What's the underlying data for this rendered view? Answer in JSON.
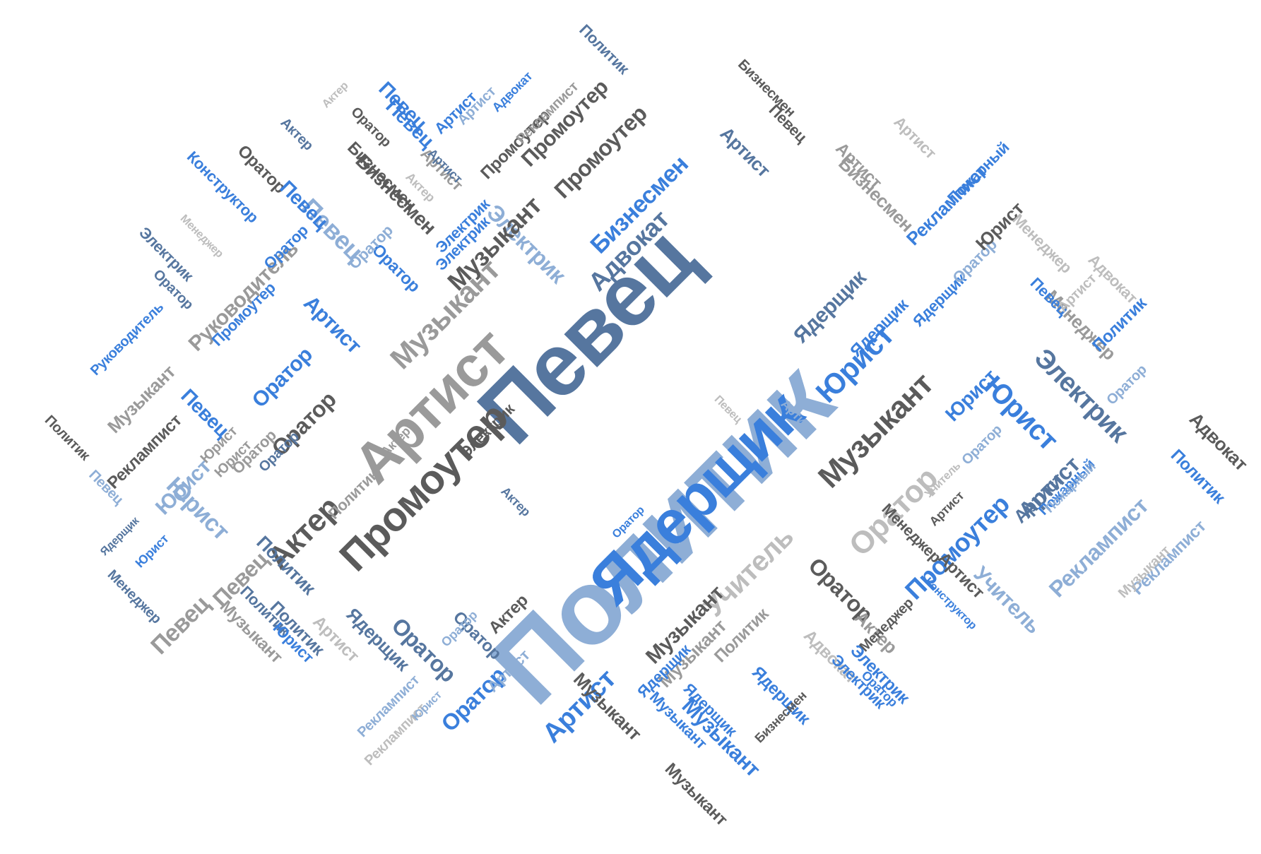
{
  "colors": {
    "steel": "#56769f",
    "light_blue": "#8eaed6",
    "bright_blue": "#3a7fdc",
    "dark_gray": "#5b5b5b",
    "mid_gray": "#9a9a9a",
    "light_gray": "#bdbdbd"
  },
  "words": [
    {
      "text": "Политик",
      "color": "#8eaed6",
      "emphasis": "largest"
    },
    {
      "text": "Певец",
      "color": "#56769f",
      "emphasis": "large"
    },
    {
      "text": "Ядерщик",
      "color": "#3a7fdc",
      "emphasis": "large"
    },
    {
      "text": "Артист",
      "color": "#9a9a9a",
      "emphasis": "large"
    },
    {
      "text": "Промоутер",
      "color": "#5b5b5b",
      "emphasis": "large"
    },
    {
      "text": "Актер",
      "color": "#5b5b5b"
    },
    {
      "text": "Музыкант",
      "color": "#9a9a9a"
    },
    {
      "text": "Адвокат",
      "color": "#56769f"
    },
    {
      "text": "Бизнесмен",
      "color": "#3a7fdc"
    },
    {
      "text": "Промоутер",
      "color": "#5b5b5b"
    },
    {
      "text": "Электрик",
      "color": "#8eaed6"
    },
    {
      "text": "Юрист",
      "color": "#3a7fdc"
    },
    {
      "text": "Ядерщик",
      "color": "#56769f"
    },
    {
      "text": "Музыкант",
      "color": "#5b5b5b"
    },
    {
      "text": "Музыкант",
      "color": "#9a9a9a"
    },
    {
      "text": "Оратор",
      "color": "#bdbdbd"
    },
    {
      "text": "Учитель",
      "color": "#bdbdbd"
    },
    {
      "text": "Промоутер",
      "color": "#3a7fdc"
    },
    {
      "text": "Оратор",
      "color": "#56769f"
    },
    {
      "text": "Оратор",
      "color": "#5b5b5b"
    },
    {
      "text": "Оратор",
      "color": "#3a7fdc"
    },
    {
      "text": "Электрик",
      "color": "#56769f"
    },
    {
      "text": "Юрист",
      "color": "#3a7fdc"
    },
    {
      "text": "Артист",
      "color": "#56769f"
    },
    {
      "text": "Реклампист",
      "color": "#8eaed6"
    },
    {
      "text": "Руководитель",
      "color": "#9a9a9a"
    },
    {
      "text": "Певец",
      "color": "#9a9a9a"
    },
    {
      "text": "Юрист",
      "color": "#8eaed6"
    },
    {
      "text": "Политик",
      "color": "#56769f"
    },
    {
      "text": "Певец",
      "color": "#8eaed6"
    },
    {
      "text": "Бизнесмен",
      "color": "#5b5b5b"
    },
    {
      "text": "Певец",
      "color": "#3a7fdc"
    },
    {
      "text": "Артист",
      "color": "#3a7fdc"
    },
    {
      "text": "Артист",
      "color": "#3a7fdc"
    },
    {
      "text": "Оратор",
      "color": "#3a7fdc"
    },
    {
      "text": "Артист",
      "color": "#9a9a9a"
    },
    {
      "text": "Промоутер",
      "color": "#5b5b5b"
    },
    {
      "text": "Оратор",
      "color": "#3a7fdc"
    },
    {
      "text": "Электрик",
      "color": "#3a7fdc"
    },
    {
      "text": "Артист",
      "color": "#3a7fdc"
    },
    {
      "text": "Ядерщик",
      "color": "#3a7fdc"
    },
    {
      "text": "Музыкант",
      "color": "#5b5b5b"
    },
    {
      "text": "Политик",
      "color": "#9a9a9a"
    },
    {
      "text": "Адвокат",
      "color": "#bdbdbd"
    },
    {
      "text": "Музыкант",
      "color": "#3a7fdc"
    },
    {
      "text": "Ядерщик",
      "color": "#3a7fdc"
    },
    {
      "text": "Музыкант",
      "color": "#5b5b5b"
    },
    {
      "text": "Оратор",
      "color": "#5b5b5b"
    },
    {
      "text": "Менеджер",
      "color": "#5b5b5b"
    },
    {
      "text": "Артист",
      "color": "#5b5b5b"
    },
    {
      "text": "Учитель",
      "color": "#8eaed6"
    },
    {
      "text": "Реклампист",
      "color": "#8eaed6"
    },
    {
      "text": "Адвокат",
      "color": "#5b5b5b"
    },
    {
      "text": "Политик",
      "color": "#3a7fdc"
    },
    {
      "text": "Менеджер",
      "color": "#9a9a9a"
    },
    {
      "text": "Адвокат",
      "color": "#bdbdbd"
    },
    {
      "text": "Электрик",
      "color": "#3a7fdc"
    },
    {
      "text": "Артист",
      "color": "#5b5b5b"
    },
    {
      "text": "Юрист",
      "color": "#3a7fdc"
    },
    {
      "text": "Ядерщик",
      "color": "#3a7fdc"
    },
    {
      "text": "Ядерщик",
      "color": "#3a7fdc"
    },
    {
      "text": "Оратор",
      "color": "#8eaed6"
    },
    {
      "text": "Юрист",
      "color": "#5b5b5b"
    },
    {
      "text": "Менеджер",
      "color": "#bdbdbd"
    },
    {
      "text": "Политик",
      "color": "#3a7fdc"
    },
    {
      "text": "Певец",
      "color": "#3a7fdc"
    },
    {
      "text": "Артист",
      "color": "#bdbdbd"
    },
    {
      "text": "Реклампист",
      "color": "#3a7fdc"
    },
    {
      "text": "Пожарный",
      "color": "#3a7fdc"
    },
    {
      "text": "Пожарный",
      "color": "#3a7fdc"
    },
    {
      "text": "Артист",
      "color": "#9a9a9a"
    },
    {
      "text": "Бизнесмен",
      "color": "#9a9a9a"
    },
    {
      "text": "Артист",
      "color": "#bdbdbd"
    },
    {
      "text": "Певец",
      "color": "#5b5b5b"
    },
    {
      "text": "Бизнесмен",
      "color": "#5b5b5b"
    },
    {
      "text": "Артист",
      "color": "#56769f"
    },
    {
      "text": "Промоутер",
      "color": "#5b5b5b"
    },
    {
      "text": "Реклампист",
      "color": "#9a9a9a"
    },
    {
      "text": "Адвокат",
      "color": "#3a7fdc"
    },
    {
      "text": "Артист",
      "color": "#8eaed6"
    },
    {
      "text": "Певец",
      "color": "#3a7fdc"
    },
    {
      "text": "Политик",
      "color": "#56769f"
    },
    {
      "text": "Актер",
      "color": "#bdbdbd"
    },
    {
      "text": "Оратор",
      "color": "#5b5b5b"
    },
    {
      "text": "Актер",
      "color": "#56769f"
    },
    {
      "text": "Оратор",
      "color": "#5b5b5b"
    },
    {
      "text": "Конструктор",
      "color": "#3a7fdc"
    },
    {
      "text": "Бизнесмен",
      "color": "#5b5b5b"
    },
    {
      "text": "Актер",
      "color": "#bdbdbd"
    },
    {
      "text": "Артист",
      "color": "#56769f"
    },
    {
      "text": "Электрик",
      "color": "#3a7fdc"
    },
    {
      "text": "Певец",
      "color": "#3a7fdc"
    },
    {
      "text": "Оратор",
      "color": "#8eaed6"
    },
    {
      "text": "Музыкант",
      "color": "#5b5b5b"
    },
    {
      "text": "Менеджер",
      "color": "#bdbdbd"
    },
    {
      "text": "Электрик",
      "color": "#56769f"
    },
    {
      "text": "Оратор",
      "color": "#56769f"
    },
    {
      "text": "Руководитель",
      "color": "#3a7fdc"
    },
    {
      "text": "Промоутер",
      "color": "#3a7fdc"
    },
    {
      "text": "Музыкант",
      "color": "#9a9a9a"
    },
    {
      "text": "Реклампист",
      "color": "#5b5b5b"
    },
    {
      "text": "Политик",
      "color": "#5b5b5b"
    },
    {
      "text": "Певец",
      "color": "#3a7fdc"
    },
    {
      "text": "Оратор",
      "color": "#9a9a9a"
    },
    {
      "text": "Юрист",
      "color": "#8eaed6"
    },
    {
      "text": "Юрист",
      "color": "#9a9a9a"
    },
    {
      "text": "Оратор",
      "color": "#56769f"
    },
    {
      "text": "Певец",
      "color": "#8eaed6"
    },
    {
      "text": "Ядерщик",
      "color": "#56769f"
    },
    {
      "text": "Юрист",
      "color": "#3a7fdc"
    },
    {
      "text": "Менеджер",
      "color": "#56769f"
    },
    {
      "text": "Певец",
      "color": "#9a9a9a"
    },
    {
      "text": "Политик",
      "color": "#56769f"
    },
    {
      "text": "Политик",
      "color": "#56769f"
    },
    {
      "text": "Музыкант",
      "color": "#9a9a9a"
    },
    {
      "text": "Юрист",
      "color": "#3a7fdc"
    },
    {
      "text": "Артист",
      "color": "#bdbdbd"
    },
    {
      "text": "Ядерщик",
      "color": "#56769f"
    },
    {
      "text": "Оратор",
      "color": "#56769f"
    },
    {
      "text": "Реклампист",
      "color": "#8eaed6"
    },
    {
      "text": "Реклампист",
      "color": "#bdbdbd"
    },
    {
      "text": "Юрист",
      "color": "#8eaed6"
    },
    {
      "text": "Оратор",
      "color": "#8eaed6"
    },
    {
      "text": "Оратор",
      "color": "#3a7fdc"
    },
    {
      "text": "Артист",
      "color": "#8eaed6"
    },
    {
      "text": "Актер",
      "color": "#5b5b5b"
    },
    {
      "text": "Музыкант",
      "color": "#5b5b5b"
    },
    {
      "text": "Музыкант",
      "color": "#3a7fdc"
    },
    {
      "text": "Ядерщик",
      "color": "#3a7fdc"
    },
    {
      "text": "Бизнесмен",
      "color": "#5b5b5b"
    },
    {
      "text": "Оратор",
      "color": "#3a7fdc"
    },
    {
      "text": "Актер",
      "color": "#9a9a9a"
    },
    {
      "text": "Менеджер",
      "color": "#5b5b5b"
    },
    {
      "text": "Конструктор",
      "color": "#3a7fdc"
    },
    {
      "text": "Электрик",
      "color": "#3a7fdc"
    },
    {
      "text": "Артист",
      "color": "#56769f"
    },
    {
      "text": "Пожарный",
      "color": "#8eaed6"
    },
    {
      "text": "Музыкант",
      "color": "#bdbdbd"
    },
    {
      "text": "Оратор",
      "color": "#8eaed6"
    },
    {
      "text": "Певец",
      "color": "#bdbdbd"
    },
    {
      "text": "Учитель",
      "color": "#bdbdbd"
    },
    {
      "text": "Артист",
      "color": "#8eaed6"
    },
    {
      "text": "Актер",
      "color": "#56769f"
    },
    {
      "text": "Электрик",
      "color": "#5b5b5b"
    },
    {
      "text": "Актер",
      "color": "#9a9a9a"
    },
    {
      "text": "Политик",
      "color": "#9a9a9a"
    },
    {
      "text": "Оратор",
      "color": "#3a7fdc"
    },
    {
      "text": "Юрист",
      "color": "#9a9a9a"
    },
    {
      "text": "Оратор",
      "color": "#8eaed6"
    }
  ]
}
